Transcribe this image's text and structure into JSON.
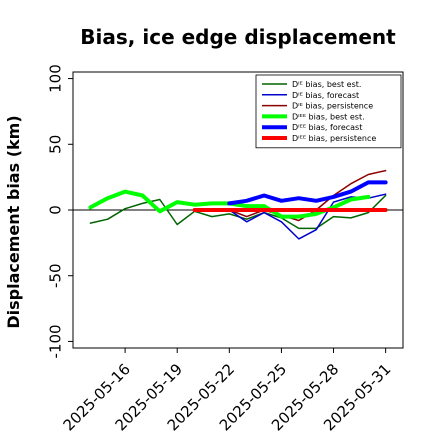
{
  "chart_data": {
    "type": "line",
    "title": "Bias, ice edge displacement",
    "xlabel": "",
    "ylabel": "Displacement bias (km)",
    "xlim": [
      "2025-05-13",
      "2025-06-01"
    ],
    "ylim": [
      -105,
      105
    ],
    "yticks": [
      -100,
      -50,
      0,
      50,
      100
    ],
    "x_tick_labels": [
      {
        "date": "2025-05-16",
        "label": "2025-05-16",
        "color": "#000000"
      },
      {
        "date": "2025-05-19",
        "label": "2025-05-19",
        "color": "#000000"
      },
      {
        "date": "2025-05-22",
        "label": "2025-05-22",
        "color": "#228b22"
      },
      {
        "date": "2025-05-25",
        "label": "2025-05-25",
        "color": "#000000"
      },
      {
        "date": "2025-05-28",
        "label": "2025-05-28",
        "color": "#000000"
      },
      {
        "date": "2025-05-31",
        "label": "2025-05-31",
        "color": "#000000"
      }
    ],
    "grid": false,
    "legend_position": "top-right",
    "zero_line": true,
    "series": [
      {
        "name": "Dᴵᴱ bias, best est.",
        "color": "#006400",
        "width": 1.5,
        "points": [
          [
            "2025-05-14",
            -10
          ],
          [
            "2025-05-15",
            -7
          ],
          [
            "2025-05-16",
            1
          ],
          [
            "2025-05-17",
            5
          ],
          [
            "2025-05-18",
            8
          ],
          [
            "2025-05-19",
            -11
          ],
          [
            "2025-05-20",
            -1
          ],
          [
            "2025-05-21",
            -5
          ],
          [
            "2025-05-22",
            -3
          ],
          [
            "2025-05-23",
            -7
          ],
          [
            "2025-05-24",
            -2
          ],
          [
            "2025-05-25",
            -6
          ],
          [
            "2025-05-26",
            -14
          ],
          [
            "2025-05-27",
            -14
          ],
          [
            "2025-05-28",
            -5
          ],
          [
            "2025-05-29",
            -6
          ],
          [
            "2025-05-30",
            -2
          ],
          [
            "2025-05-31",
            11
          ]
        ]
      },
      {
        "name": "Dᴵᴱ bias, forecast",
        "color": "#0000cd",
        "width": 1.5,
        "points": [
          [
            "2025-05-22",
            0
          ],
          [
            "2025-05-23",
            -9
          ],
          [
            "2025-05-24",
            -2
          ],
          [
            "2025-05-25",
            -9
          ],
          [
            "2025-05-26",
            -22
          ],
          [
            "2025-05-27",
            -15
          ],
          [
            "2025-05-28",
            6
          ],
          [
            "2025-05-29",
            10
          ],
          [
            "2025-05-30",
            9
          ],
          [
            "2025-05-31",
            12
          ]
        ]
      },
      {
        "name": "Dᴵᴱ bias, persistence",
        "color": "#8b0000",
        "width": 1.5,
        "points": [
          [
            "2025-05-22",
            0
          ],
          [
            "2025-05-23",
            -5
          ],
          [
            "2025-05-24",
            0
          ],
          [
            "2025-05-25",
            -4
          ],
          [
            "2025-05-26",
            -8
          ],
          [
            "2025-05-27",
            0
          ],
          [
            "2025-05-28",
            11
          ],
          [
            "2025-05-29",
            20
          ],
          [
            "2025-05-30",
            27
          ],
          [
            "2025-05-31",
            30
          ]
        ]
      },
      {
        "name": "Dᴵᴱᴱ bias, best est.",
        "color": "#00ff00",
        "width": 4,
        "points": [
          [
            "2025-05-14",
            2
          ],
          [
            "2025-05-15",
            9
          ],
          [
            "2025-05-16",
            14
          ],
          [
            "2025-05-17",
            11
          ],
          [
            "2025-05-18",
            -1
          ],
          [
            "2025-05-19",
            6
          ],
          [
            "2025-05-20",
            4
          ],
          [
            "2025-05-21",
            5
          ],
          [
            "2025-05-22",
            5
          ],
          [
            "2025-05-23",
            3
          ],
          [
            "2025-05-24",
            3
          ],
          [
            "2025-05-25",
            -5
          ],
          [
            "2025-05-26",
            -5
          ],
          [
            "2025-05-27",
            -3
          ],
          [
            "2025-05-28",
            2
          ],
          [
            "2025-05-29",
            8
          ],
          [
            "2025-05-30",
            10
          ]
        ]
      },
      {
        "name": "Dᴵᴱᴱ bias, forecast",
        "color": "#0000ff",
        "width": 4,
        "points": [
          [
            "2025-05-22",
            5
          ],
          [
            "2025-05-23",
            7
          ],
          [
            "2025-05-24",
            11
          ],
          [
            "2025-05-25",
            7
          ],
          [
            "2025-05-26",
            9
          ],
          [
            "2025-05-27",
            7
          ],
          [
            "2025-05-28",
            10
          ],
          [
            "2025-05-29",
            14
          ],
          [
            "2025-05-30",
            21
          ],
          [
            "2025-05-31",
            21
          ]
        ]
      },
      {
        "name": "Dᴵᴱᴱ bias, persistence",
        "color": "#ff0000",
        "width": 4,
        "points": [
          [
            "2025-05-20",
            0
          ],
          [
            "2025-05-21",
            0
          ],
          [
            "2025-05-22",
            0
          ],
          [
            "2025-05-23",
            0
          ],
          [
            "2025-05-24",
            0
          ],
          [
            "2025-05-25",
            0
          ],
          [
            "2025-05-26",
            0
          ],
          [
            "2025-05-27",
            0
          ],
          [
            "2025-05-28",
            0
          ],
          [
            "2025-05-29",
            0
          ],
          [
            "2025-05-30",
            0
          ],
          [
            "2025-05-31",
            0
          ]
        ]
      }
    ]
  }
}
